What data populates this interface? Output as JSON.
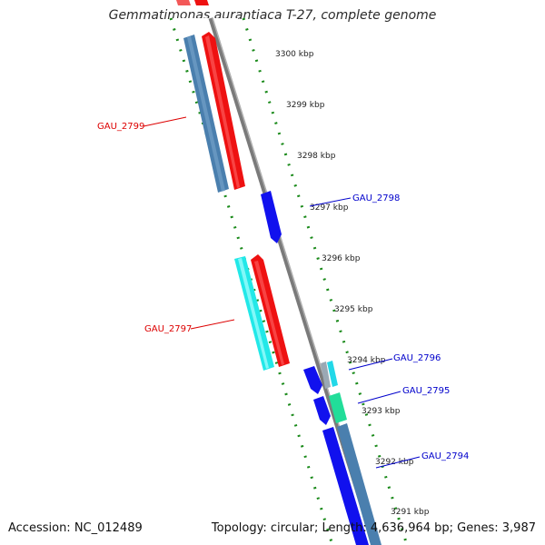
{
  "header": {
    "title": "Gemmatimonas aurantiaca T-27, complete genome"
  },
  "footer": {
    "accession": "Accession: NC_012489",
    "summary": "Topology: circular; Length: 4,636,964 bp; Genes: 3,987"
  },
  "colors": {
    "backbone": "#808080",
    "tick": "#1a8a1a",
    "label_red": "#dd0000",
    "label_blue": "#0000cc",
    "gene_steelblue": "#4a7fae",
    "gene_red": "#ee1111",
    "gene_blue": "#1111ee",
    "gene_cyan": "#22e8e8",
    "gene_teal": "#22dd99",
    "gene_gray": "#9aa8b4"
  },
  "scale_labels": [
    "3300 kbp",
    "3299 kbp",
    "3298 kbp",
    "3297 kbp",
    "3296 kbp",
    "3295 kbp",
    "3294 kbp",
    "3293 kbp",
    "3292 kbp",
    "3291 kbp"
  ],
  "gene_labels": [
    {
      "text": "GAU_2799",
      "color": "red"
    },
    {
      "text": "GAU_2798",
      "color": "blue"
    },
    {
      "text": "GAU_2797",
      "color": "red"
    },
    {
      "text": "GAU_2796",
      "color": "blue"
    },
    {
      "text": "GAU_2795",
      "color": "blue"
    },
    {
      "text": "GAU_2794",
      "color": "blue"
    }
  ]
}
